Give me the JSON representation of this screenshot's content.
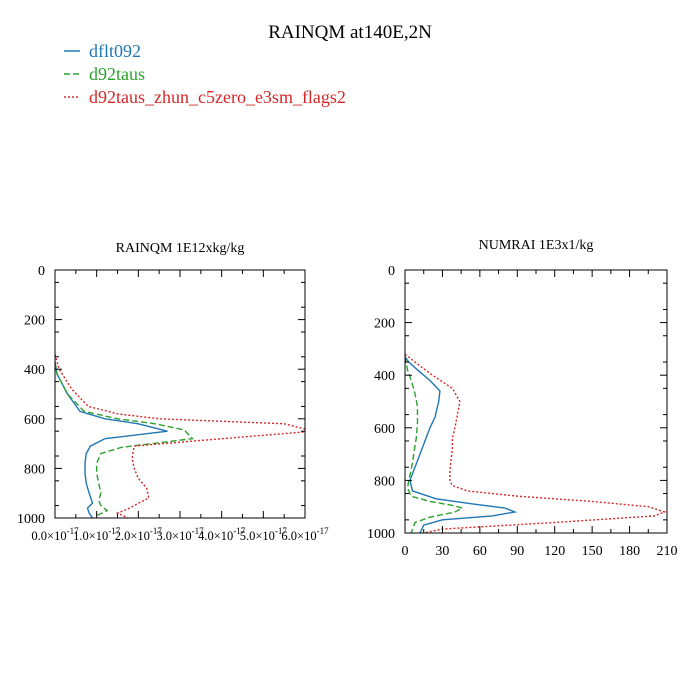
{
  "title": "RAINQM at140E,2N",
  "legend": [
    {
      "label": "dflt092",
      "color": "#1f77b4",
      "dash": "solid"
    },
    {
      "label": "d92taus",
      "color": "#2ca02c",
      "dash": "dashed"
    },
    {
      "label": "d92taus_zhun_c5zero_e3sm_flags2",
      "color": "#d62728",
      "dash": "dotted"
    }
  ],
  "chart_data": [
    {
      "type": "line",
      "title": "RAINQM  1E12xkg/kg",
      "xlabel": "",
      "ylabel": "",
      "xlim": [
        0,
        6e-17
      ],
      "ylim": [
        1000,
        0
      ],
      "yticks": [
        0,
        200,
        400,
        600,
        800,
        1000
      ],
      "yticklabels": [
        "0",
        "200",
        "400",
        "600",
        "800",
        "1000"
      ],
      "xticks": [
        0,
        1e-17,
        2e-17,
        3e-17,
        4e-17,
        5e-17,
        6e-17
      ],
      "xticklabels": [
        "0.0×10",
        "1.0×10",
        "2.0×10",
        "3.0×10",
        "4.0×10",
        "5.0×10",
        "6.0×10"
      ],
      "xtick_exponent": "-17",
      "series": [
        {
          "name": "dflt092",
          "x": [
            0,
            5e-19,
            3e-18,
            6e-18,
            1.2e-17,
            2e-17,
            2.7e-17,
            1.2e-17,
            8.5e-18,
            7.5e-18,
            7.2e-18,
            7.2e-18,
            7.5e-18,
            8.2e-18,
            9e-18,
            7.8e-18,
            8.2e-18,
            9e-18
          ],
          "y": [
            370,
            420,
            500,
            570,
            600,
            620,
            650,
            680,
            710,
            740,
            780,
            820,
            860,
            900,
            940,
            960,
            980,
            1000
          ]
        },
        {
          "name": "d92taus",
          "x": [
            0,
            5e-19,
            3e-18,
            7e-18,
            1.5e-17,
            2.4e-17,
            3.1e-17,
            3.3e-17,
            1.6e-17,
            1.1e-17,
            1e-17,
            1e-17,
            1.05e-17,
            1.1e-17,
            1.05e-17,
            1.1e-17,
            1.25e-17,
            1e-17
          ],
          "y": [
            370,
            420,
            500,
            570,
            600,
            620,
            645,
            680,
            715,
            740,
            780,
            820,
            860,
            900,
            930,
            950,
            970,
            990
          ]
        },
        {
          "name": "d92taus_zhun_c5zero_e3sm_flags2",
          "x": [
            0,
            1e-18,
            4e-18,
            8e-18,
            1.5e-17,
            2.5e-17,
            4e-17,
            5.5e-17,
            6.2e-17,
            3.3e-17,
            1.9e-17,
            1.85e-17,
            1.9e-17,
            2e-17,
            2.2e-17,
            2.25e-17,
            2e-17,
            1.8e-17,
            1.5e-17,
            1.75e-17
          ],
          "y": [
            340,
            400,
            480,
            550,
            580,
            600,
            610,
            620,
            650,
            690,
            710,
            760,
            800,
            840,
            880,
            920,
            940,
            960,
            980,
            1000
          ]
        }
      ]
    },
    {
      "type": "line",
      "title": "NUMRAI  1E3x1/kg",
      "xlabel": "",
      "ylabel": "",
      "xlim": [
        0,
        210
      ],
      "ylim": [
        1000,
        0
      ],
      "yticks": [
        0,
        200,
        400,
        600,
        800,
        1000
      ],
      "yticklabels": [
        "0",
        "200",
        "400",
        "600",
        "800",
        "1000"
      ],
      "xticks": [
        0,
        30,
        60,
        90,
        120,
        150,
        180,
        210
      ],
      "xticklabels": [
        "0",
        "30",
        "60",
        "90",
        "120",
        "150",
        "180",
        "210"
      ],
      "series": [
        {
          "name": "dflt092",
          "x": [
            0,
            3,
            10,
            20,
            28,
            27,
            24,
            20,
            16,
            12,
            8,
            4,
            6,
            25,
            55,
            80,
            88,
            70,
            30,
            15,
            12
          ],
          "y": [
            330,
            350,
            380,
            420,
            460,
            500,
            560,
            600,
            650,
            700,
            750,
            800,
            840,
            870,
            890,
            905,
            920,
            935,
            950,
            970,
            1000
          ]
        },
        {
          "name": "d92taus",
          "x": [
            0,
            2,
            5,
            8,
            10,
            10,
            9,
            7,
            5,
            3,
            2,
            5,
            20,
            38,
            46,
            40,
            20,
            8,
            5
          ],
          "y": [
            330,
            380,
            420,
            470,
            520,
            580,
            640,
            700,
            760,
            800,
            830,
            860,
            880,
            895,
            905,
            920,
            940,
            960,
            1000
          ]
        },
        {
          "name": "d92taus_zhun_c5zero_e3sm_flags2",
          "x": [
            0,
            8,
            22,
            38,
            44,
            42,
            40,
            38,
            38,
            37,
            36,
            36,
            38,
            50,
            90,
            150,
            195,
            208,
            200,
            120,
            30,
            15
          ],
          "y": [
            320,
            350,
            400,
            450,
            500,
            550,
            600,
            640,
            680,
            720,
            760,
            800,
            820,
            840,
            860,
            880,
            900,
            920,
            935,
            960,
            985,
            1000
          ]
        }
      ]
    }
  ]
}
